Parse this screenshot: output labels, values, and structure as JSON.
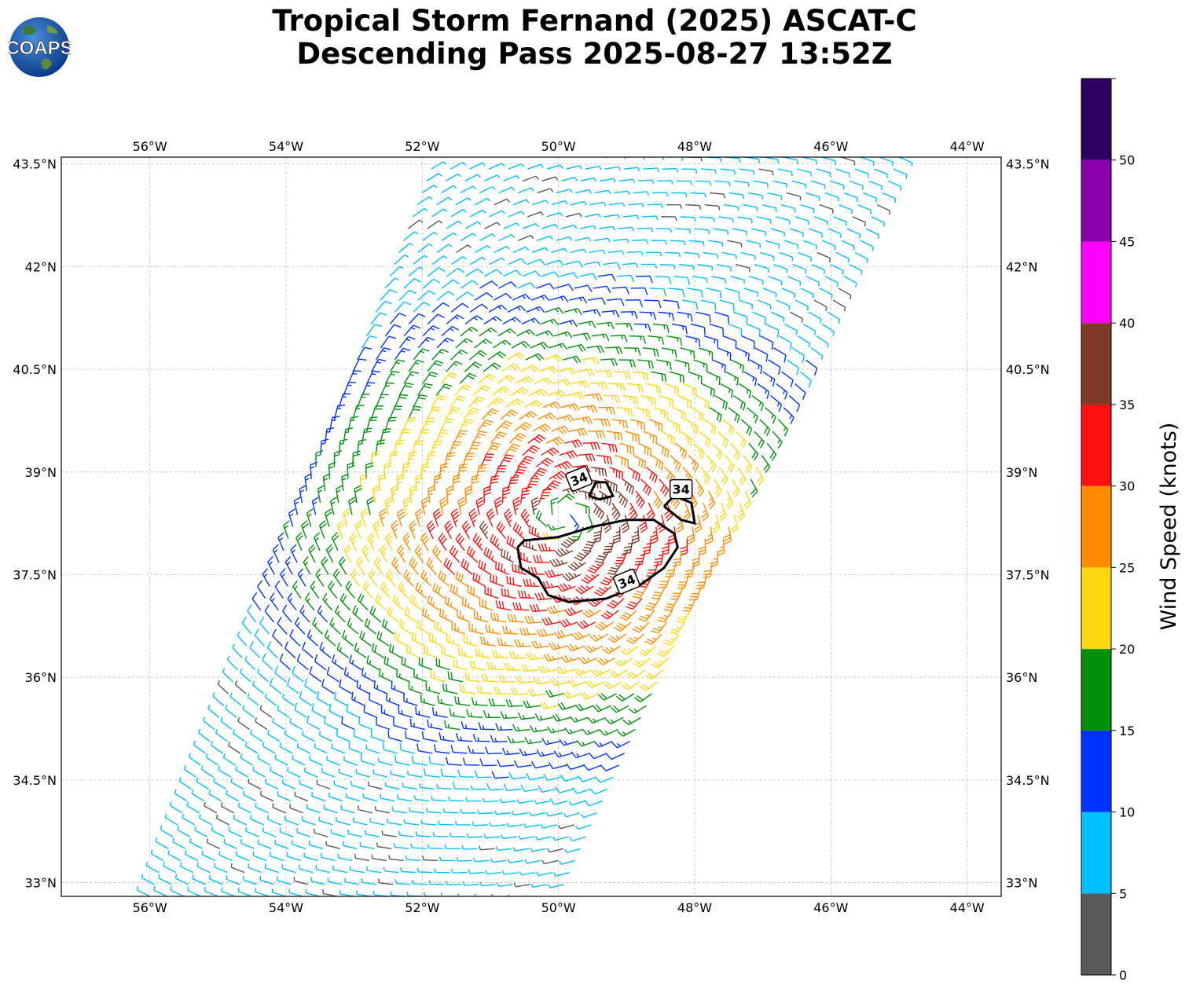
{
  "title": {
    "line1": "Tropical Storm Fernand (2025) ASCAT-C",
    "line2": "Descending Pass 2025-08-27 13:52Z"
  },
  "logo": {
    "text": "COAPS",
    "icon": "globe-icon"
  },
  "map": {
    "lon_range": [
      -57.3,
      -43.5
    ],
    "lat_range": [
      32.8,
      43.6
    ],
    "lon_ticks": [
      {
        "value": -56,
        "label": "56°W"
      },
      {
        "value": -54,
        "label": "54°W"
      },
      {
        "value": -52,
        "label": "52°W"
      },
      {
        "value": -50,
        "label": "50°W"
      },
      {
        "value": -48,
        "label": "48°W"
      },
      {
        "value": -46,
        "label": "46°W"
      },
      {
        "value": -44,
        "label": "44°W"
      }
    ],
    "lat_ticks": [
      {
        "value": 43.5,
        "label": "43.5°N"
      },
      {
        "value": 42,
        "label": "42°N"
      },
      {
        "value": 40.5,
        "label": "40.5°N"
      },
      {
        "value": 39,
        "label": "39°N"
      },
      {
        "value": 37.5,
        "label": "37.5°N"
      },
      {
        "value": 36,
        "label": "36°N"
      },
      {
        "value": 34.5,
        "label": "34.5°N"
      },
      {
        "value": 33,
        "label": "33°N"
      }
    ],
    "grid": true,
    "storm_center": {
      "lon": -49.9,
      "lat": 38.35
    },
    "swath": {
      "top_left": {
        "lon": -51.8,
        "lat": 43.6
      },
      "top_right": {
        "lon": -45.0,
        "lat": 43.6
      },
      "bottom_right": {
        "lon": -50.0,
        "lat": 32.8
      },
      "bottom_left": {
        "lon": -56.0,
        "lat": 32.8
      }
    },
    "contour_labels": [
      {
        "text": "34",
        "lon": -49.7,
        "lat": 38.9
      },
      {
        "text": "34",
        "lon": -48.2,
        "lat": 38.75
      },
      {
        "text": "34",
        "lon": -49.0,
        "lat": 37.4
      }
    ],
    "contours": [
      [
        [
          -50.6,
          37.9
        ],
        [
          -50.5,
          38.0
        ],
        [
          -50.0,
          38.05
        ],
        [
          -49.5,
          38.2
        ],
        [
          -49.0,
          38.3
        ],
        [
          -48.6,
          38.3
        ],
        [
          -48.3,
          38.1
        ],
        [
          -48.25,
          37.9
        ],
        [
          -48.45,
          37.6
        ],
        [
          -48.8,
          37.35
        ],
        [
          -49.3,
          37.15
        ],
        [
          -49.85,
          37.1
        ],
        [
          -50.15,
          37.2
        ],
        [
          -50.3,
          37.45
        ],
        [
          -50.55,
          37.6
        ],
        [
          -50.6,
          37.9
        ]
      ],
      [
        [
          -49.55,
          38.65
        ],
        [
          -49.45,
          38.85
        ],
        [
          -49.3,
          38.85
        ],
        [
          -49.2,
          38.65
        ],
        [
          -49.4,
          38.6
        ],
        [
          -49.55,
          38.65
        ]
      ],
      [
        [
          -48.45,
          38.5
        ],
        [
          -48.3,
          38.65
        ],
        [
          -48.05,
          38.55
        ],
        [
          -48.0,
          38.25
        ],
        [
          -48.2,
          38.3
        ],
        [
          -48.45,
          38.5
        ]
      ]
    ]
  },
  "colorbar": {
    "label": "Wind Speed (knots)",
    "range": [
      0,
      55
    ],
    "bins": [
      {
        "from": 0,
        "to": 5,
        "color": "#595959"
      },
      {
        "from": 5,
        "to": 10,
        "color": "#00bfff"
      },
      {
        "from": 10,
        "to": 15,
        "color": "#0033ff"
      },
      {
        "from": 15,
        "to": 20,
        "color": "#00900b"
      },
      {
        "from": 20,
        "to": 25,
        "color": "#ffd70f"
      },
      {
        "from": 25,
        "to": 30,
        "color": "#ff8c00"
      },
      {
        "from": 30,
        "to": 35,
        "color": "#ff1010"
      },
      {
        "from": 35,
        "to": 40,
        "color": "#7f3b28"
      },
      {
        "from": 40,
        "to": 45,
        "color": "#ff00ff"
      },
      {
        "from": 45,
        "to": 50,
        "color": "#8800aa"
      },
      {
        "from": 50,
        "to": 55,
        "color": "#2e0060"
      }
    ],
    "tick_labels": [
      "0",
      "5",
      "10",
      "15",
      "20",
      "25",
      "30",
      "35",
      "40",
      "45",
      "50"
    ]
  },
  "contour_color": "#000000",
  "grid_color": "#bbbbbb"
}
